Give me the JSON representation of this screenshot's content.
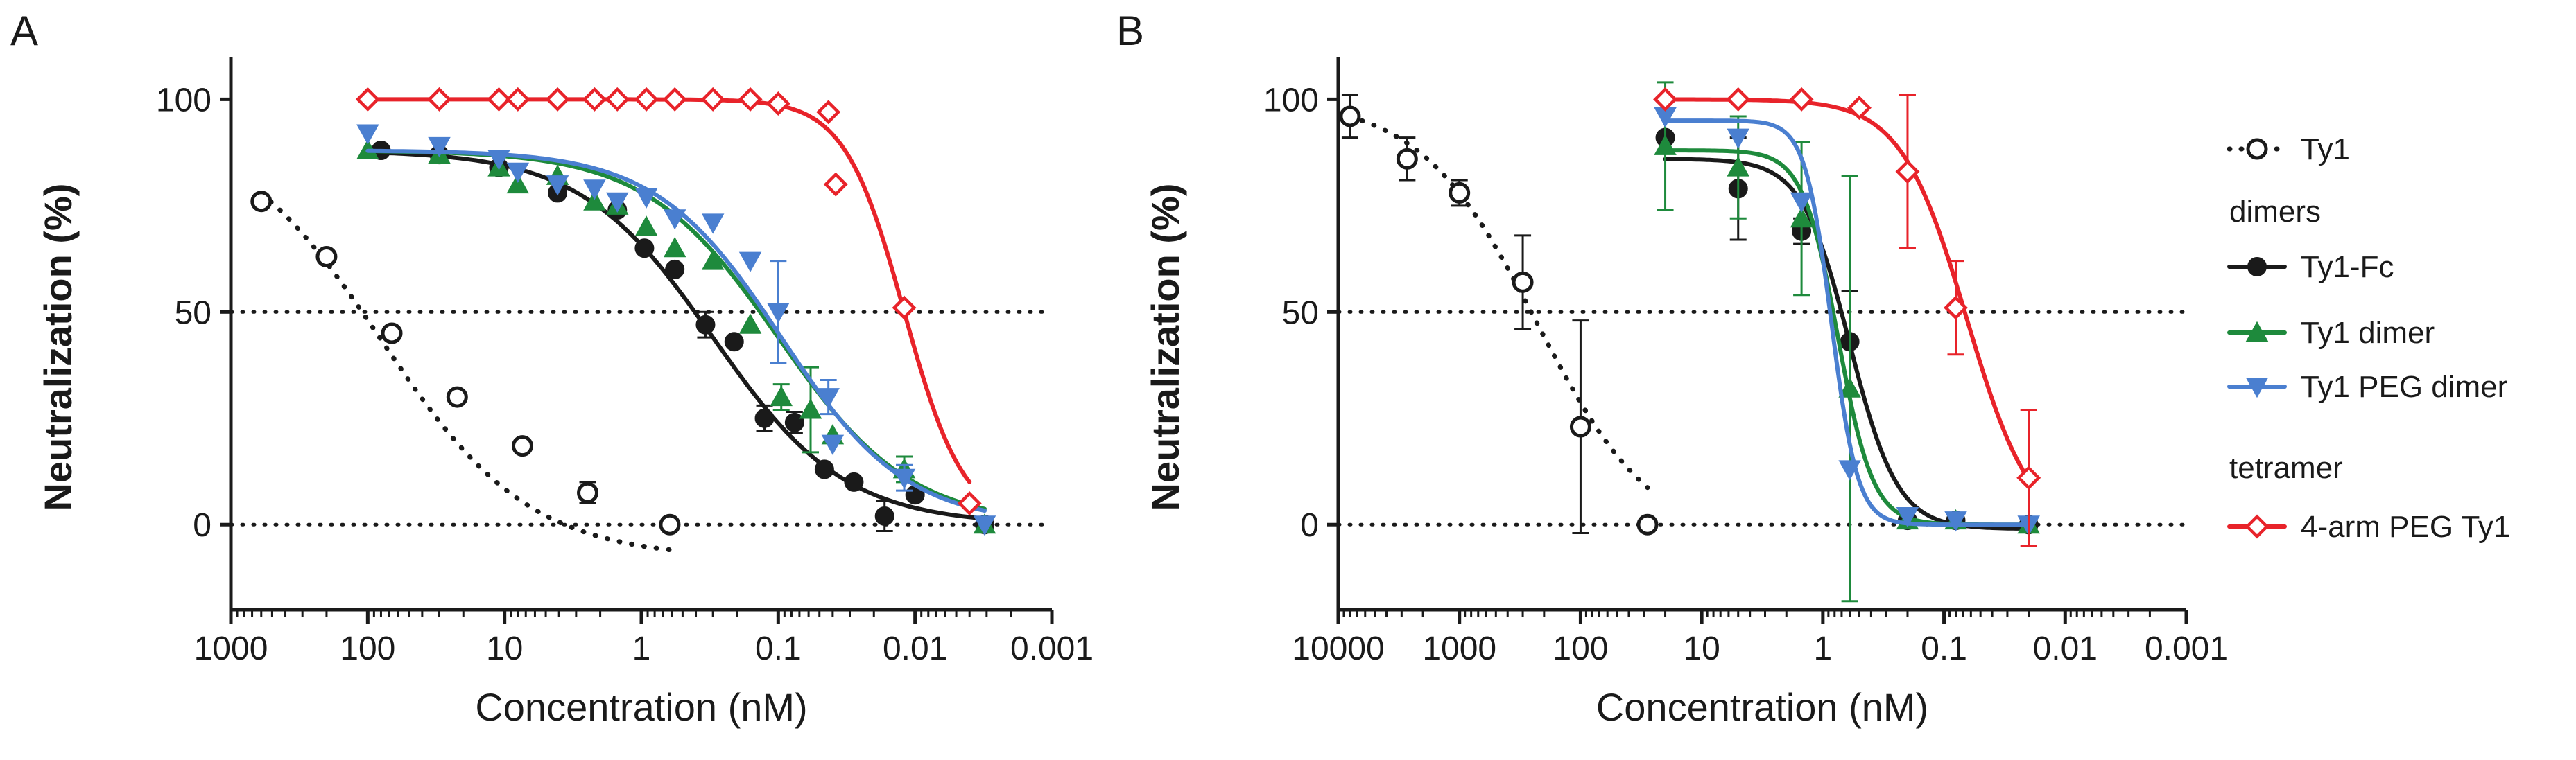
{
  "legend": {
    "entries": [
      {
        "series": "Ty1",
        "label": "Ty1",
        "kind": "series"
      },
      {
        "label": "dimers",
        "kind": "header"
      },
      {
        "series": "Ty1-Fc",
        "label": "Ty1-Fc",
        "kind": "series"
      },
      {
        "series": "Ty1 dimer",
        "label": "Ty1 dimer",
        "kind": "series"
      },
      {
        "series": "Ty1 PEG dimer",
        "label": "Ty1 PEG dimer",
        "kind": "series"
      },
      {
        "label": "tetramer",
        "kind": "header"
      },
      {
        "series": "4-arm PEG Ty1",
        "label": "4-arm PEG Ty1",
        "kind": "series"
      }
    ]
  },
  "styles": {
    "Ty1": {
      "color": "#1a1a1a",
      "marker": "open-circle",
      "line": "dotted"
    },
    "Ty1-Fc": {
      "color": "#1a1a1a",
      "marker": "filled-circle",
      "line": "solid"
    },
    "Ty1 dimer": {
      "color": "#1e8a3c",
      "marker": "triangle-up",
      "line": "solid"
    },
    "Ty1 PEG dimer": {
      "color": "#4a7fd0",
      "marker": "triangle-down",
      "line": "solid"
    },
    "4-arm PEG Ty1": {
      "color": "#e8232a",
      "marker": "open-diamond",
      "line": "solid"
    }
  },
  "chart_data": [
    {
      "type": "scatter",
      "panel": "A",
      "xlabel": "Concentration (nM)",
      "ylabel": "Neutralization (%)",
      "xscale": "log",
      "xreversed": true,
      "xlim": [
        1000,
        0.001
      ],
      "ylim": [
        -20,
        110
      ],
      "xticks": [
        {
          "v": 1000,
          "label": "1000"
        },
        {
          "v": 100,
          "label": "100"
        },
        {
          "v": 10,
          "label": "10"
        },
        {
          "v": 1,
          "label": "1"
        },
        {
          "v": 0.1,
          "label": "0.1"
        },
        {
          "v": 0.01,
          "label": "0.01"
        },
        {
          "v": 0.001,
          "label": "0.001"
        }
      ],
      "yticks": [
        {
          "v": 0,
          "label": "0"
        },
        {
          "v": 50,
          "label": "50"
        },
        {
          "v": 100,
          "label": "100"
        }
      ],
      "reference_lines": [
        0,
        50
      ],
      "series": [
        {
          "name": "Ty1",
          "x": [
            600,
            200,
            66.7,
            22.2,
            7.4,
            2.47,
            0.62
          ],
          "y": [
            76,
            63,
            45,
            30,
            18.5,
            7.5,
            0
          ],
          "err": [
            0,
            0,
            0,
            0,
            0,
            2.5,
            0
          ],
          "fit": {
            "top": 95,
            "bottom": -8,
            "ec50": 80,
            "hill": 0.8
          }
        },
        {
          "name": "Ty1-Fc",
          "x": [
            80,
            30,
            11,
            4.1,
            1.5,
            0.95,
            0.57,
            0.34,
            0.21,
            0.126,
            0.076,
            0.046,
            0.028,
            0.0167,
            0.01,
            0.0031
          ],
          "y": [
            88,
            87,
            84,
            78,
            74,
            65,
            60,
            47,
            43,
            25,
            24,
            13,
            10,
            2,
            7,
            0
          ],
          "err": [
            0,
            0,
            0,
            0,
            0,
            0,
            0,
            3,
            0,
            3,
            2.5,
            0,
            0,
            3.5,
            0,
            0
          ],
          "fit": {
            "top": 88,
            "bottom": 0,
            "ec50": 0.3,
            "hill": 0.9
          }
        },
        {
          "name": "Ty1 dimer",
          "x": [
            100,
            30,
            11,
            8,
            4.1,
            2.2,
            1.5,
            0.92,
            0.57,
            0.3,
            0.16,
            0.095,
            0.058,
            0.04,
            0.012,
            0.0031
          ],
          "y": [
            88,
            87,
            84,
            80,
            82,
            76,
            75,
            70,
            65,
            62,
            47,
            30,
            27,
            21,
            13,
            0
          ],
          "err": [
            0,
            0,
            0,
            0,
            0,
            0,
            0,
            0,
            0,
            0,
            0,
            3,
            10,
            0,
            3,
            0
          ],
          "fit": {
            "top": 88,
            "bottom": 0,
            "ec50": 0.1,
            "hill": 0.9
          }
        },
        {
          "name": "Ty1 PEG dimer",
          "x": [
            100,
            30,
            11,
            8,
            4.1,
            2.2,
            1.5,
            0.92,
            0.57,
            0.3,
            0.16,
            0.1,
            0.043,
            0.04,
            0.012,
            0.0031
          ],
          "y": [
            92,
            89,
            86,
            83,
            80,
            79,
            76,
            77,
            72,
            71,
            62,
            50,
            30,
            19,
            11,
            0
          ],
          "err": [
            0,
            0,
            0,
            0,
            0,
            0,
            0,
            0,
            0,
            0,
            0,
            12,
            4,
            0,
            3,
            0
          ],
          "fit": {
            "top": 88,
            "bottom": 0,
            "ec50": 0.095,
            "hill": 0.95
          }
        },
        {
          "name": "4-arm PEG Ty1",
          "x": [
            100,
            30,
            11,
            8,
            4.1,
            2.2,
            1.5,
            0.92,
            0.57,
            0.3,
            0.16,
            0.1,
            0.043,
            0.038,
            0.012,
            0.004
          ],
          "y": [
            100,
            100,
            100,
            100,
            100,
            100,
            100,
            100,
            100,
            100,
            100,
            99,
            97,
            80,
            51,
            5
          ],
          "err": [
            0,
            0,
            0,
            0,
            0,
            0,
            0,
            0,
            0,
            0,
            0,
            0,
            0,
            0,
            0,
            0
          ],
          "fit": {
            "top": 100,
            "bottom": 0,
            "ec50": 0.012,
            "hill": 2.0
          }
        }
      ]
    },
    {
      "type": "scatter",
      "panel": "B",
      "xlabel": "Concentration (nM)",
      "ylabel": "Neutralization (%)",
      "xscale": "log",
      "xreversed": true,
      "xlim": [
        10000,
        0.001
      ],
      "ylim": [
        -20,
        110
      ],
      "xticks": [
        {
          "v": 10000,
          "label": "10000"
        },
        {
          "v": 1000,
          "label": "1000"
        },
        {
          "v": 100,
          "label": "100"
        },
        {
          "v": 10,
          "label": "10"
        },
        {
          "v": 1,
          "label": "1"
        },
        {
          "v": 0.1,
          "label": "0.1"
        },
        {
          "v": 0.01,
          "label": "0.01"
        },
        {
          "v": 0.001,
          "label": "0.001"
        }
      ],
      "yticks": [
        {
          "v": 0,
          "label": "0"
        },
        {
          "v": 50,
          "label": "50"
        },
        {
          "v": 100,
          "label": "100"
        }
      ],
      "reference_lines": [
        0,
        50
      ],
      "series": [
        {
          "name": "Ty1",
          "x": [
            8000,
            2700,
            1000,
            300,
            100,
            28
          ],
          "y": [
            96,
            86,
            78,
            57,
            23,
            0
          ],
          "err": [
            5,
            5,
            3,
            11,
            25,
            0
          ],
          "fit": {
            "top": 100,
            "bottom": -5,
            "ec50": 230,
            "hill": 0.9
          }
        },
        {
          "name": "Ty1-Fc",
          "x": [
            20,
            5,
            1.5,
            0.6,
            0.2,
            0.08,
            0.02
          ],
          "y": [
            91,
            79,
            69,
            43,
            1,
            1,
            0
          ],
          "err": [
            0,
            12,
            3,
            12,
            0,
            0,
            0
          ],
          "fit": {
            "top": 86,
            "bottom": -1,
            "ec50": 0.6,
            "hill": 2.2
          }
        },
        {
          "name": "Ty1 dimer",
          "x": [
            20,
            5,
            1.5,
            0.6,
            0.2,
            0.08,
            0.02
          ],
          "y": [
            89,
            84,
            72,
            32,
            1,
            1,
            0
          ],
          "err": [
            15,
            12,
            18,
            50,
            0,
            0,
            0
          ],
          "fit": {
            "top": 88,
            "bottom": 0,
            "ec50": 0.75,
            "hill": 3.0
          }
        },
        {
          "name": "Ty1 PEG dimer",
          "x": [
            20,
            5,
            1.5,
            0.6,
            0.2,
            0.08,
            0.02
          ],
          "y": [
            96,
            91,
            76,
            13,
            2,
            1,
            0
          ],
          "err": [
            0,
            0,
            0,
            0,
            0,
            0,
            0
          ],
          "fit": {
            "top": 95,
            "bottom": 0,
            "ec50": 0.85,
            "hill": 4.0
          }
        },
        {
          "name": "4-arm PEG Ty1",
          "x": [
            20,
            5,
            1.5,
            0.5,
            0.2,
            0.08,
            0.02
          ],
          "y": [
            100,
            100,
            100,
            98,
            83,
            51,
            11
          ],
          "err": [
            0,
            0,
            0,
            0,
            18,
            11,
            16
          ],
          "fit": {
            "top": 100,
            "bottom": -3,
            "ec50": 0.065,
            "hill": 1.6
          }
        }
      ]
    }
  ]
}
